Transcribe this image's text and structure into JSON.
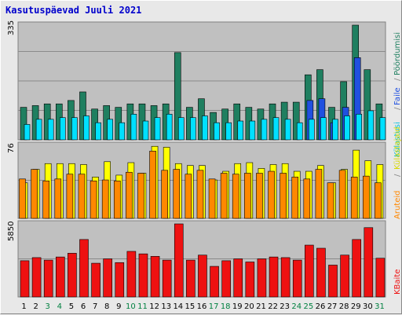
{
  "title": "Kasutuspäevad Juuli 2021",
  "legend": {
    "pages": "Pöördumisi",
    "files": "Faile",
    "hits": "Külastusi",
    "visits": "Külastajaid",
    "sites": "Aruteid",
    "kbytes": "KBaite",
    "sep": "/"
  },
  "colors": {
    "hits": "#1f7f60",
    "files": "#2050e0",
    "pages": "#00e0ff",
    "visits": "#ffff00",
    "sites": "#ff8800",
    "kbytes": "#ee1111",
    "weekend": "#008040",
    "weekday": "#000000"
  },
  "chart_data": [
    {
      "type": "bar",
      "title": "Kasutuspäevad Juuli 2021",
      "ylim": [
        0,
        335
      ],
      "ymax_label": "335",
      "categories": [
        "1",
        "2",
        "3",
        "4",
        "5",
        "6",
        "7",
        "8",
        "9",
        "10",
        "11",
        "12",
        "13",
        "14",
        "15",
        "16",
        "17",
        "18",
        "19",
        "20",
        "21",
        "22",
        "23",
        "24",
        "25",
        "26",
        "27",
        "28",
        "29",
        "30",
        "31"
      ],
      "weekend": [
        3,
        4,
        10,
        11,
        17,
        18,
        24,
        25,
        31
      ],
      "series": [
        {
          "name": "Külastusi",
          "values": [
            95,
            100,
            105,
            105,
            115,
            140,
            90,
            100,
            95,
            105,
            105,
            100,
            105,
            255,
            95,
            120,
            80,
            90,
            105,
            95,
            90,
            105,
            110,
            110,
            190,
            205,
            95,
            170,
            335,
            205,
            105
          ]
        },
        {
          "name": "Faile",
          "values": [
            0,
            0,
            0,
            0,
            0,
            0,
            0,
            0,
            0,
            0,
            0,
            0,
            0,
            0,
            0,
            0,
            0,
            0,
            0,
            0,
            0,
            0,
            0,
            0,
            115,
            120,
            50,
            95,
            240,
            0,
            0
          ]
        },
        {
          "name": "Pöördumisi",
          "values": [
            45,
            60,
            60,
            65,
            65,
            70,
            50,
            60,
            50,
            75,
            55,
            65,
            75,
            65,
            65,
            70,
            50,
            50,
            55,
            55,
            60,
            65,
            60,
            50,
            60,
            65,
            60,
            70,
            75,
            85,
            65
          ]
        }
      ]
    },
    {
      "type": "bar",
      "ylim": [
        0,
        76
      ],
      "ymax_label": "76",
      "categories": [
        "1",
        "2",
        "3",
        "4",
        "5",
        "6",
        "7",
        "8",
        "9",
        "10",
        "11",
        "12",
        "13",
        "14",
        "15",
        "16",
        "17",
        "18",
        "19",
        "20",
        "21",
        "22",
        "23",
        "24",
        "25",
        "26",
        "27",
        "28",
        "29",
        "30",
        "31"
      ],
      "series": [
        {
          "name": "Külastajaid",
          "values": [
            37,
            51,
            57,
            57,
            57,
            56,
            43,
            59,
            45,
            58,
            47,
            75,
            74,
            57,
            55,
            55,
            40,
            49,
            57,
            58,
            52,
            56,
            57,
            49,
            49,
            55,
            37,
            51,
            71,
            60,
            56
          ]
        },
        {
          "name": "Aruteid",
          "values": [
            41,
            51,
            39,
            41,
            46,
            46,
            39,
            40,
            39,
            48,
            47,
            70,
            50,
            51,
            46,
            50,
            41,
            47,
            46,
            47,
            47,
            49,
            47,
            43,
            41,
            51,
            37,
            50,
            43,
            44,
            37
          ]
        }
      ]
    },
    {
      "type": "bar",
      "ylim": [
        0,
        5850
      ],
      "ymax_label": "5850",
      "categories": [
        "1",
        "2",
        "3",
        "4",
        "5",
        "6",
        "7",
        "8",
        "9",
        "10",
        "11",
        "12",
        "13",
        "14",
        "15",
        "16",
        "17",
        "18",
        "19",
        "20",
        "21",
        "22",
        "23",
        "24",
        "25",
        "26",
        "27",
        "28",
        "29",
        "30",
        "31"
      ],
      "series": [
        {
          "name": "KBaite",
          "values": [
            2900,
            3150,
            2950,
            3200,
            3500,
            4600,
            2700,
            3050,
            2750,
            3650,
            3450,
            3250,
            2950,
            5850,
            2950,
            3350,
            2450,
            2900,
            3050,
            2800,
            3050,
            3200,
            3150,
            2950,
            4150,
            3900,
            2550,
            3350,
            4600,
            5550,
            3100
          ]
        }
      ]
    }
  ]
}
